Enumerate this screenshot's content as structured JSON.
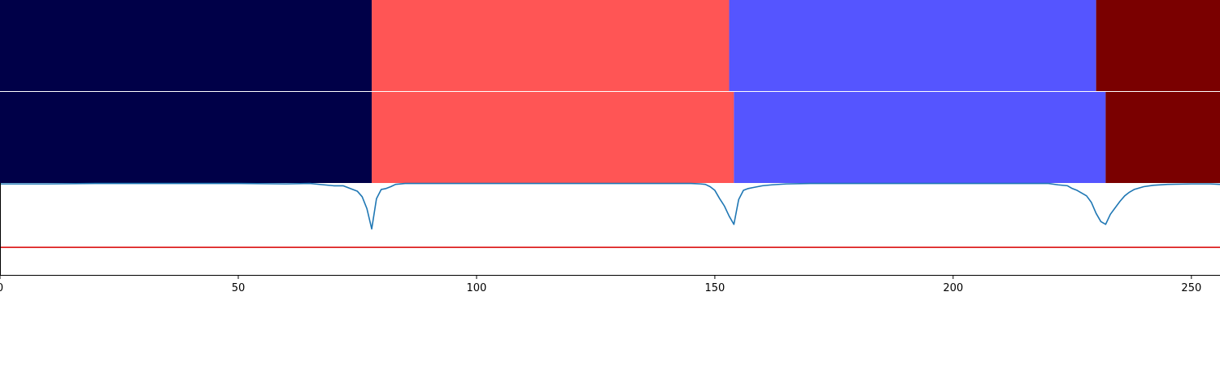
{
  "chart_data": {
    "type": "heatmap",
    "title": "",
    "xlabel": "",
    "ylabel": "",
    "xlim": [
      0,
      256
    ],
    "xticks": [
      0,
      50,
      100,
      150,
      200,
      250
    ],
    "grid": false,
    "colors": {
      "segment_0": "#000048",
      "segment_1": "#ff5555",
      "segment_2": "#5555ff",
      "segment_3": "#7a0000",
      "line": "#1f77b4",
      "threshold": "#dd2222",
      "axis": "#000000"
    },
    "rows": [
      {
        "name": "",
        "segments": [
          {
            "start": 0,
            "end": 78,
            "color_key": "segment_0"
          },
          {
            "start": 78,
            "end": 153,
            "color_key": "segment_1"
          },
          {
            "start": 153,
            "end": 230,
            "color_key": "segment_2"
          },
          {
            "start": 230,
            "end": 256,
            "color_key": "segment_3"
          }
        ]
      },
      {
        "name": "",
        "segments": [
          {
            "start": 0,
            "end": 78,
            "color_key": "segment_0"
          },
          {
            "start": 78,
            "end": 154,
            "color_key": "segment_1"
          },
          {
            "start": 154,
            "end": 232,
            "color_key": "segment_2"
          },
          {
            "start": 232,
            "end": 256,
            "color_key": "segment_3"
          }
        ]
      }
    ],
    "line_panel": {
      "ylim": [
        0,
        1
      ],
      "threshold": 0.3,
      "series": [
        {
          "x": [
            0,
            10,
            20,
            30,
            40,
            50,
            60,
            65,
            68,
            70,
            72,
            73,
            74,
            75,
            76,
            77,
            78,
            79,
            80,
            81,
            82,
            83,
            85,
            90,
            100,
            110,
            120,
            130,
            140,
            145,
            147,
            148,
            149,
            150,
            151,
            152,
            153,
            154,
            155,
            156,
            157,
            158,
            160,
            162,
            165,
            170,
            180,
            190,
            200,
            210,
            220,
            222,
            224,
            225,
            226,
            227,
            228,
            229,
            230,
            231,
            232,
            233,
            234,
            235,
            236,
            237,
            238,
            240,
            242,
            245,
            250,
            254,
            256
          ],
          "y": [
            0.99,
            0.99,
            0.995,
            0.995,
            0.995,
            0.995,
            0.99,
            0.995,
            0.98,
            0.97,
            0.97,
            0.95,
            0.93,
            0.91,
            0.85,
            0.72,
            0.5,
            0.83,
            0.93,
            0.94,
            0.96,
            0.985,
            0.995,
            0.995,
            0.995,
            0.995,
            0.995,
            0.995,
            0.995,
            0.995,
            0.99,
            0.985,
            0.96,
            0.92,
            0.83,
            0.75,
            0.64,
            0.55,
            0.82,
            0.92,
            0.94,
            0.95,
            0.97,
            0.98,
            0.99,
            0.995,
            0.995,
            0.995,
            0.995,
            0.995,
            0.995,
            0.98,
            0.97,
            0.94,
            0.92,
            0.89,
            0.86,
            0.79,
            0.67,
            0.58,
            0.55,
            0.66,
            0.73,
            0.8,
            0.86,
            0.9,
            0.93,
            0.96,
            0.975,
            0.985,
            0.99,
            0.99,
            0.985
          ]
        }
      ]
    }
  }
}
